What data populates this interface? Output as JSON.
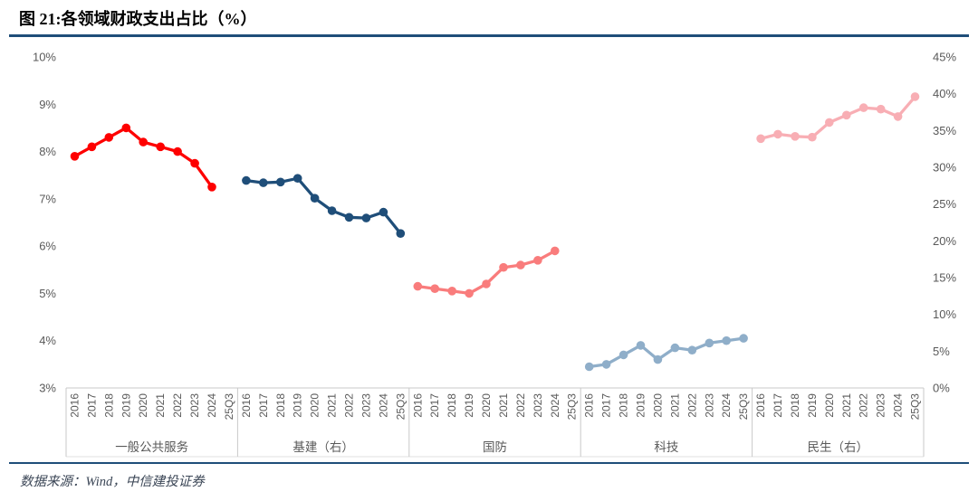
{
  "header": {
    "title": "图 21:各领域财政支出占比（%）"
  },
  "footer": {
    "source": "数据来源：Wind，中信建投证券"
  },
  "theme": {
    "rule_color": "#1F4E79",
    "axis_text_color": "#595959",
    "separator_color": "#C9C9C9"
  },
  "chart_data": {
    "type": "line",
    "title": "图 21:各领域财政支出占比（%）",
    "categories": [
      "2016",
      "2017",
      "2018",
      "2019",
      "2020",
      "2021",
      "2022",
      "2023",
      "2024",
      "25Q3"
    ],
    "groups": [
      "一般公共服务",
      "基建（右）",
      "国防",
      "科技",
      "民生（右）"
    ],
    "left_axis": {
      "min": 3,
      "max": 10,
      "ticks": [
        "10%",
        "9%",
        "8%",
        "7%",
        "6%",
        "5%",
        "4%",
        "3%"
      ]
    },
    "right_axis": {
      "min": 0,
      "max": 45,
      "ticks": [
        "45%",
        "40%",
        "35%",
        "30%",
        "25%",
        "20%",
        "15%",
        "10%",
        "5%",
        "0%"
      ]
    },
    "grid": false,
    "legend": "none",
    "series": [
      {
        "name": "一般公共服务",
        "group": 0,
        "axis": "left",
        "color": "#FE0000",
        "values": [
          7.9,
          8.1,
          8.3,
          8.5,
          8.2,
          8.1,
          8.0,
          7.75,
          7.25,
          null
        ]
      },
      {
        "name": "基建（右）",
        "group": 1,
        "axis": "right",
        "color": "#1F4E79",
        "values": [
          28.2,
          27.9,
          28.0,
          28.5,
          25.8,
          24.1,
          23.2,
          23.1,
          23.9,
          21.0
        ]
      },
      {
        "name": "国防",
        "group": 2,
        "axis": "left",
        "color": "#F97C7C",
        "values": [
          5.15,
          5.1,
          5.05,
          5.0,
          5.2,
          5.55,
          5.6,
          5.7,
          5.9,
          null
        ]
      },
      {
        "name": "科技",
        "group": 3,
        "axis": "left",
        "color": "#8FAEC9",
        "values": [
          3.45,
          3.5,
          3.7,
          3.9,
          3.6,
          3.85,
          3.8,
          3.95,
          4.0,
          4.05
        ]
      },
      {
        "name": "民生（右）",
        "group": 4,
        "axis": "right",
        "color": "#F8AEB4",
        "values": [
          33.9,
          34.5,
          34.2,
          34.1,
          36.1,
          37.1,
          38.1,
          37.9,
          36.9,
          39.6
        ]
      }
    ]
  }
}
